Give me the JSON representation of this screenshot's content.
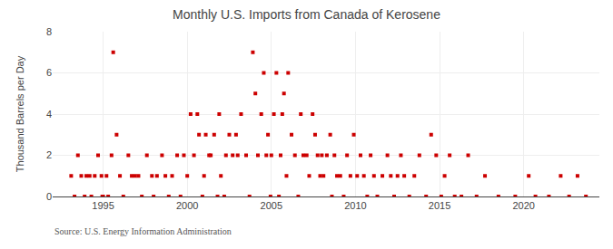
{
  "chart_data": {
    "type": "scatter",
    "title": "Monthly U.S. Imports from Canada of Kerosene",
    "ylabel": "Thousand Barrels per Day",
    "annotations": [
      "Source: U.S. Energy Information Administration"
    ],
    "color": "#cc0000",
    "marker": "square",
    "grid": true,
    "xlim": [
      1992.0,
      2024.5
    ],
    "xticks": [
      1995,
      2000,
      2005,
      2010,
      2015,
      2020
    ],
    "ylim": [
      0,
      8
    ],
    "yticks": [
      0,
      2,
      4,
      6,
      8
    ],
    "x": [
      1993.1,
      1993.3,
      1993.5,
      1993.7,
      1993.9,
      1994.0,
      1994.2,
      1994.3,
      1994.5,
      1994.7,
      1994.9,
      1994.95,
      1995.0,
      1995.2,
      1995.3,
      1995.5,
      1995.6,
      1995.8,
      1996.0,
      1996.2,
      1996.5,
      1996.7,
      1996.9,
      1997.1,
      1997.3,
      1997.6,
      1997.9,
      1998.0,
      1998.2,
      1998.5,
      1998.7,
      1998.9,
      1999.1,
      1999.4,
      1999.6,
      1999.8,
      2000.0,
      2000.2,
      2000.4,
      2000.6,
      2000.7,
      2000.9,
      2001.0,
      2001.1,
      2001.3,
      2001.4,
      2001.6,
      2001.8,
      2001.9,
      2002.0,
      2002.2,
      2002.3,
      2002.5,
      2002.7,
      2002.9,
      2003.0,
      2003.2,
      2003.5,
      2003.7,
      2003.9,
      2004.05,
      2004.2,
      2004.4,
      2004.55,
      2004.7,
      2004.8,
      2004.95,
      2005.0,
      2005.15,
      2005.3,
      2005.45,
      2005.55,
      2005.65,
      2005.75,
      2005.9,
      2006.0,
      2006.2,
      2006.4,
      2006.6,
      2006.75,
      2006.9,
      2007.1,
      2007.25,
      2007.45,
      2007.6,
      2007.75,
      2007.9,
      2008.0,
      2008.1,
      2008.3,
      2008.5,
      2008.6,
      2008.75,
      2008.9,
      2009.1,
      2009.3,
      2009.5,
      2009.7,
      2009.9,
      2010.1,
      2010.3,
      2010.5,
      2010.7,
      2010.9,
      2011.1,
      2011.3,
      2011.6,
      2011.9,
      2012.1,
      2012.3,
      2012.5,
      2012.7,
      2012.9,
      2013.2,
      2013.5,
      2013.8,
      2014.2,
      2014.5,
      2014.8,
      2015.1,
      2015.3,
      2015.6,
      2015.9,
      2016.3,
      2016.7,
      2017.2,
      2017.7,
      2018.5,
      2019.5,
      2020.3,
      2020.7,
      2021.5,
      2022.2,
      2022.7,
      2023.2,
      2023.7
    ],
    "values": [
      1,
      0,
      2,
      1,
      0,
      1,
      1,
      0,
      1,
      2,
      1,
      0,
      0,
      1,
      0,
      2,
      7,
      3,
      1,
      0,
      2,
      1,
      1,
      1,
      0,
      2,
      1,
      0,
      1,
      2,
      1,
      0,
      1,
      2,
      0,
      2,
      1,
      4,
      2,
      4,
      3,
      0,
      1,
      3,
      2,
      2,
      3,
      0,
      4,
      1,
      0,
      2,
      3,
      2,
      3,
      2,
      4,
      2,
      0,
      7,
      5,
      2,
      4,
      6,
      2,
      3,
      0,
      2,
      4,
      6,
      0,
      2,
      4,
      5,
      1,
      6,
      3,
      2,
      0,
      4,
      2,
      2,
      1,
      4,
      3,
      2,
      1,
      2,
      1,
      2,
      3,
      0,
      2,
      1,
      1,
      0,
      2,
      1,
      3,
      1,
      2,
      1,
      0,
      2,
      1,
      0,
      1,
      2,
      1,
      0,
      1,
      2,
      1,
      0,
      1,
      2,
      0,
      3,
      2,
      0,
      1,
      2,
      0,
      0,
      2,
      0,
      1,
      0,
      0,
      1,
      0,
      0,
      1,
      0,
      1,
      0
    ]
  }
}
